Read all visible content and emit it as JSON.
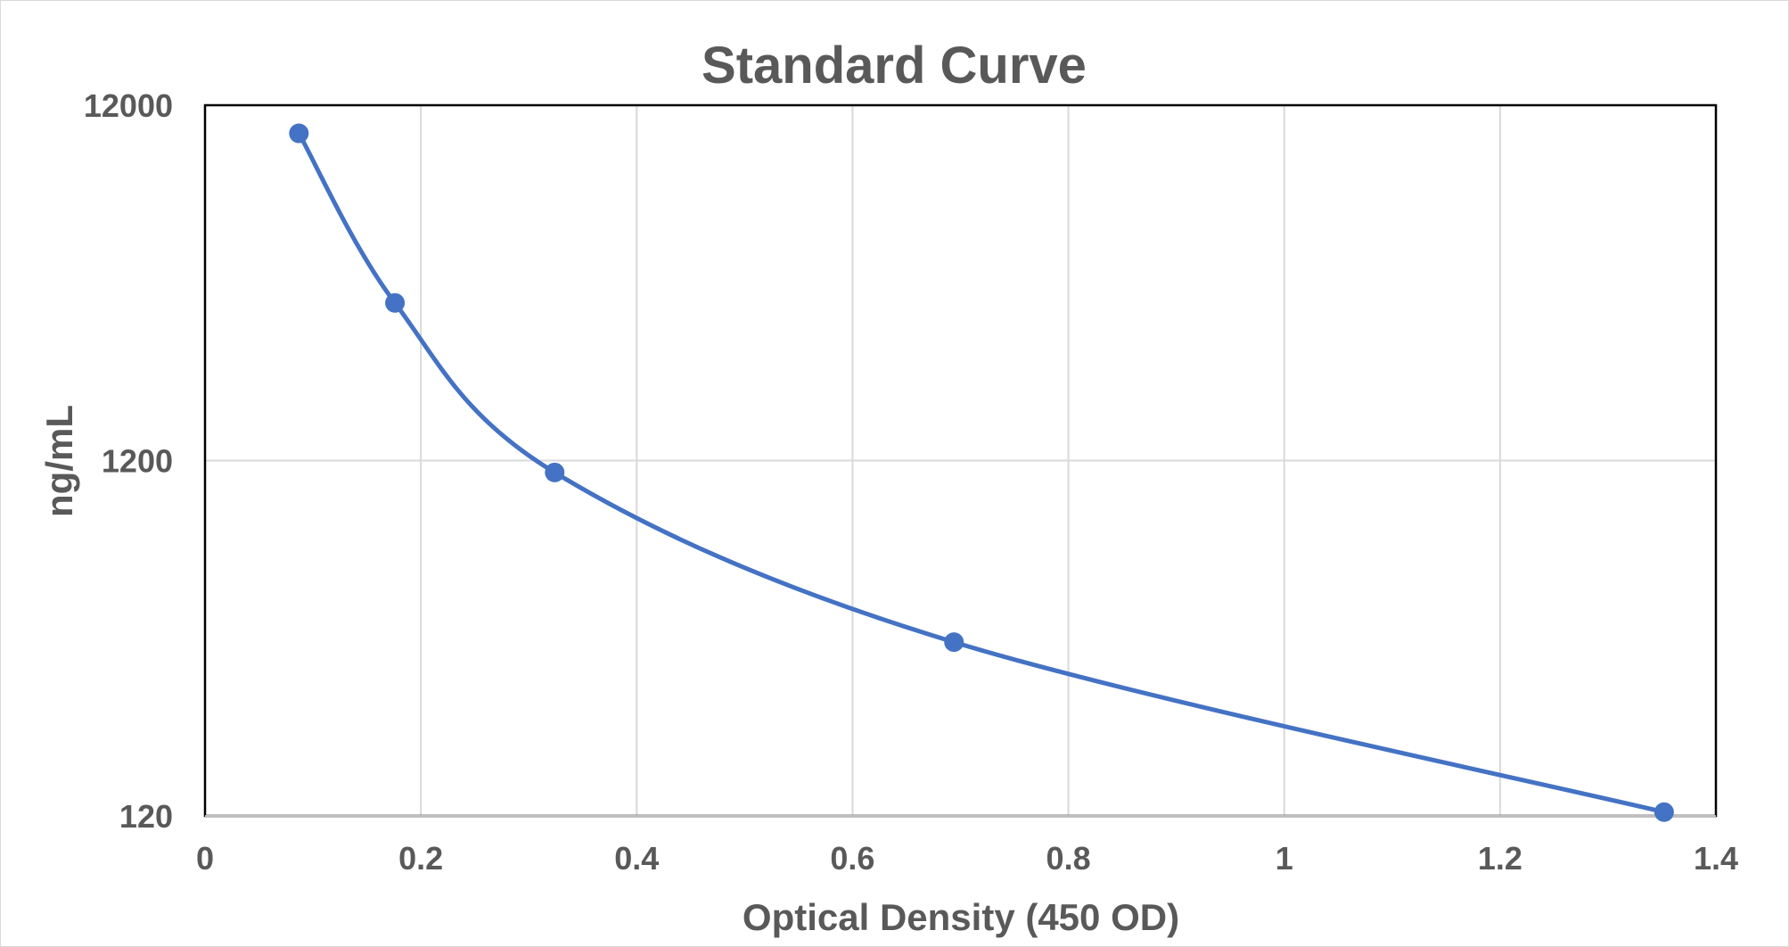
{
  "chart_data": {
    "type": "scatter",
    "title": "Standard Curve",
    "xlabel": "Optical Density (450 OD)",
    "ylabel": "ng/mL",
    "xlim": [
      0,
      1.4
    ],
    "ylim": [
      120,
      12000
    ],
    "y_scale": "log",
    "x_ticks": [
      "0",
      "0.2",
      "0.4",
      "0.6",
      "0.8",
      "1",
      "1.2",
      "1.4"
    ],
    "y_ticks": [
      "120",
      "1200",
      "12000"
    ],
    "grid": true,
    "smooth_line": true,
    "series": [
      {
        "x": [
          0.087,
          0.176,
          0.324,
          0.694,
          1.352
        ],
        "y": [
          10000,
          3333,
          1111,
          370,
          123
        ],
        "color": "#4472c4"
      }
    ]
  }
}
